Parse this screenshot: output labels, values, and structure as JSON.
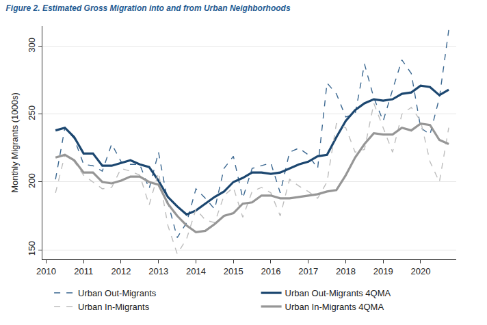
{
  "chart_data": {
    "type": "line",
    "title": "Figure 2. Estimated Gross Migration into and from Urban Neighborhoods",
    "y_label": "Monthly Migrants (1000s)",
    "x": [
      2010.25,
      2010.5,
      2010.75,
      2011,
      2011.25,
      2011.5,
      2011.75,
      2012,
      2012.25,
      2012.5,
      2012.75,
      2013,
      2013.25,
      2013.5,
      2013.75,
      2014,
      2014.25,
      2014.5,
      2014.75,
      2015,
      2015.25,
      2015.5,
      2015.75,
      2016,
      2016.25,
      2016.5,
      2016.75,
      2017,
      2017.25,
      2017.5,
      2017.75,
      2018,
      2018.25,
      2018.5,
      2018.75,
      2019,
      2019.25,
      2019.5,
      2019.75,
      2020,
      2020.25,
      2020.5,
      2020.75
    ],
    "series": [
      {
        "name": "Urban Out-Migrants",
        "color": "#3a6790",
        "line_style": "dash",
        "values": [
          202,
          240,
          232,
          213,
          212,
          208,
          228,
          215,
          213,
          213,
          195,
          222,
          185,
          159,
          170,
          195,
          188,
          180,
          210,
          219,
          188,
          210,
          212,
          214,
          192,
          222,
          225,
          220,
          210,
          273,
          265,
          248,
          250,
          287,
          262,
          245,
          268,
          290,
          280,
          240,
          235,
          262,
          312
        ]
      },
      {
        "name": "Urban Out-Migrants 4QMA",
        "color": "#1c4770",
        "line_style": "solid",
        "values": [
          238,
          240,
          233,
          221,
          221,
          212,
          212,
          214,
          216,
          213,
          211,
          201,
          189,
          182,
          176,
          179,
          184,
          189,
          193,
          200,
          203,
          207,
          207,
          206,
          207,
          210,
          213,
          215,
          219,
          220,
          233,
          245,
          253,
          258,
          261,
          260,
          261,
          265,
          266,
          271,
          270,
          264,
          268
        ]
      },
      {
        "name": "Urban In-Migrants",
        "color": "#bdbdbd",
        "line_style": "dash",
        "values": [
          192,
          220,
          215,
          205,
          200,
          195,
          196,
          210,
          208,
          205,
          183,
          207,
          168,
          147,
          158,
          180,
          172,
          170,
          190,
          196,
          174,
          193,
          196,
          192,
          175,
          202,
          197,
          193,
          188,
          200,
          243,
          240,
          222,
          224,
          258,
          240,
          222,
          250,
          255,
          245,
          215,
          200,
          240
        ]
      },
      {
        "name": "Urban In-Migrants 4QMA",
        "color": "#969696",
        "line_style": "solid",
        "values": [
          218,
          220,
          216,
          207,
          207,
          200,
          199,
          201,
          204,
          204,
          200,
          198,
          184,
          175,
          168,
          163,
          164,
          169,
          175,
          177,
          184,
          185,
          190,
          190,
          188,
          188,
          189,
          190,
          191,
          193,
          194,
          205,
          218,
          228,
          236,
          235,
          235,
          240,
          238,
          243,
          242,
          231,
          228
        ]
      }
    ],
    "xlim": [
      2009.9,
      2020.95
    ],
    "xticks": [
      2010,
      2011,
      2012,
      2013,
      2014,
      2015,
      2016,
      2017,
      2018,
      2019,
      2020
    ],
    "ylim": [
      143,
      315
    ],
    "yticks": [
      150,
      200,
      250,
      300
    ],
    "grid": true,
    "legend": "bottom"
  }
}
